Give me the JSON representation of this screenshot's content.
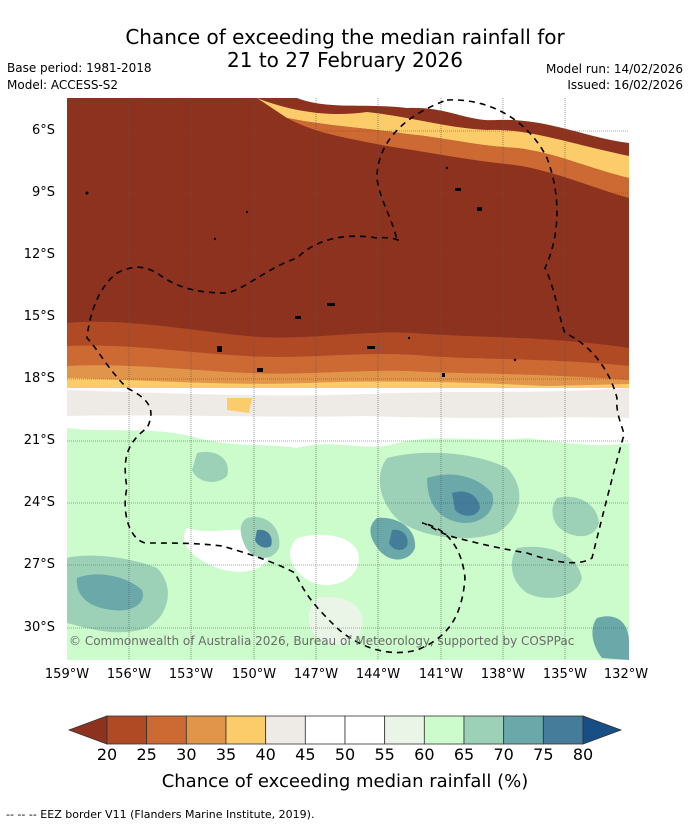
{
  "title_line1": "Chance of exceeding the median rainfall for",
  "title_line2": "21 to 27 February 2026",
  "base_period": "Base period: 1981-2018",
  "model": "Model: ACCESS-S2",
  "model_run": "Model run: 14/02/2026",
  "issued": "Issued: 16/02/2026",
  "lat_labels": [
    "6°S",
    "9°S",
    "12°S",
    "15°S",
    "18°S",
    "21°S",
    "24°S",
    "27°S",
    "30°S"
  ],
  "lon_labels": [
    "159°W",
    "156°W",
    "153°W",
    "150°W",
    "147°W",
    "144°W",
    "141°W",
    "138°W",
    "135°W",
    "132°W"
  ],
  "copyright": "© Commonwealth of Australia 2026, Bureau of Meteorology, supported by COSPPac",
  "colorbar": {
    "ticks": [
      "20",
      "25",
      "30",
      "35",
      "40",
      "45",
      "50",
      "55",
      "60",
      "65",
      "70",
      "75",
      "80"
    ],
    "colors": [
      "#8e3220",
      "#b04a25",
      "#cd6a33",
      "#e1954a",
      "#fdcc6a",
      "#eeebe6",
      "#ffffff",
      "#ffffff",
      "#eaf5e8",
      "#ccfbcc",
      "#9cd1b8",
      "#6ba8aa",
      "#457c9a",
      "#184e86"
    ],
    "title": "Chance of exceeding median rainfall (%)"
  },
  "footer": "--  --  -- EEZ border V11 (Flanders Marine Institute, 2019)."
}
